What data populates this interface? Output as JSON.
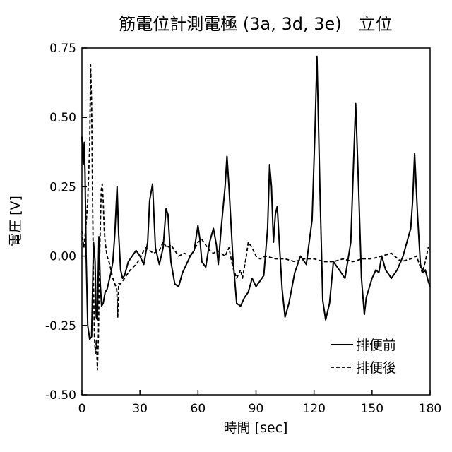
{
  "chart_data": {
    "type": "line",
    "title": "筋電位計測電極 (3a, 3d, 3e)　立位",
    "xlabel": "時間 [sec]",
    "ylabel": "電圧 [V]",
    "xlim": [
      0,
      180
    ],
    "ylim": [
      -0.5,
      0.75
    ],
    "xticks": [
      0,
      30,
      60,
      90,
      120,
      150,
      180
    ],
    "xtick_labels": [
      "0",
      "30",
      "60",
      "90",
      "120",
      "150",
      "180"
    ],
    "yticks": [
      -0.5,
      -0.25,
      0,
      0.25,
      0.5,
      0.75
    ],
    "ytick_labels": [
      "-0.50",
      "-0.25",
      "0.00",
      "0.25",
      "0.50",
      "0.75"
    ],
    "grid": false,
    "legend_position": "bottom-right",
    "series": [
      {
        "name": "排便前",
        "style": "solid",
        "color": "#000000",
        "x": [
          0,
          0.7,
          1.2,
          1.6,
          2.2,
          3,
          4,
          5,
          6,
          6.8,
          7.4,
          8,
          8.8,
          9.5,
          10.2,
          11,
          12,
          13,
          14,
          15,
          16,
          17,
          18.2,
          19,
          20,
          21,
          22,
          24,
          26,
          28,
          30,
          32,
          34,
          35,
          36.5,
          38,
          40,
          42,
          43.5,
          44.5,
          46,
          48,
          50,
          52,
          54,
          56,
          58,
          60,
          61,
          62,
          64,
          66,
          68,
          69.5,
          70.5,
          72,
          74,
          75,
          76,
          78,
          80,
          82,
          84,
          86,
          88,
          90,
          92,
          94,
          96,
          97,
          98,
          99,
          100,
          101,
          102,
          103.5,
          105,
          107,
          110,
          113,
          116,
          119,
          120.5,
          121.5,
          123,
          124.5,
          126,
          128,
          130,
          133,
          136,
          139,
          140.5,
          141.5,
          143,
          144.5,
          146,
          147,
          150,
          152,
          153.5,
          155,
          157,
          160,
          163,
          166,
          168,
          170,
          171,
          172,
          173.5,
          175,
          176.5,
          177.5,
          179,
          180
        ],
        "y": [
          0.43,
          0.33,
          0.41,
          0.3,
          0.0,
          -0.25,
          -0.3,
          -0.29,
          0.05,
          -0.02,
          -0.22,
          -0.23,
          0.07,
          -0.1,
          -0.18,
          -0.17,
          -0.13,
          -0.12,
          -0.09,
          -0.06,
          -0.02,
          0.08,
          0.25,
          0.08,
          -0.05,
          -0.08,
          -0.07,
          -0.02,
          0.0,
          0.02,
          0.0,
          -0.03,
          0.05,
          0.2,
          0.26,
          0.03,
          -0.03,
          0.03,
          0.17,
          0.15,
          -0.02,
          -0.1,
          -0.11,
          -0.06,
          -0.03,
          0.0,
          0.02,
          0.11,
          0.06,
          -0.02,
          -0.04,
          0.05,
          0.1,
          0.04,
          -0.03,
          0.1,
          0.25,
          0.36,
          0.25,
          0.0,
          -0.17,
          -0.18,
          -0.15,
          -0.13,
          -0.08,
          -0.11,
          -0.09,
          -0.07,
          0.1,
          0.33,
          0.25,
          0.05,
          0.15,
          0.18,
          0.05,
          -0.12,
          -0.22,
          -0.17,
          -0.06,
          0.0,
          -0.03,
          0.13,
          0.45,
          0.72,
          0.25,
          -0.16,
          -0.23,
          -0.17,
          -0.02,
          -0.05,
          -0.08,
          0.05,
          0.35,
          0.55,
          0.25,
          -0.08,
          -0.21,
          -0.15,
          -0.08,
          -0.05,
          -0.06,
          0.0,
          -0.05,
          -0.08,
          -0.05,
          0.0,
          0.05,
          0.1,
          0.2,
          0.37,
          0.15,
          -0.03,
          -0.06,
          -0.05,
          -0.09,
          -0.11
        ]
      },
      {
        "name": "排便後",
        "style": "dashed",
        "color": "#000000",
        "x": [
          0,
          1,
          2,
          3,
          4,
          4.5,
          5,
          5.5,
          6,
          6.5,
          7,
          7.5,
          8,
          8.5,
          9,
          9.5,
          10,
          10.5,
          11,
          11.5,
          12,
          13,
          14,
          15,
          16,
          17,
          18,
          18.5,
          19,
          20,
          22,
          25,
          28,
          30,
          32,
          33,
          35,
          37,
          40,
          42,
          44,
          46,
          48,
          50,
          53,
          56,
          58,
          60,
          62,
          64,
          66,
          68,
          70,
          72,
          74,
          76,
          78,
          80,
          82,
          83,
          85,
          86,
          88,
          90,
          92,
          95,
          100,
          105,
          110,
          115,
          120,
          125,
          130,
          135,
          140,
          145,
          150,
          155,
          160,
          165,
          170,
          173,
          175,
          176,
          177.5,
          179,
          180
        ],
        "y": [
          0.09,
          0.03,
          0.1,
          0.2,
          0.4,
          0.69,
          0.55,
          0.2,
          -0.1,
          -0.3,
          -0.35,
          -0.3,
          -0.41,
          -0.3,
          -0.05,
          0.1,
          0.24,
          0.26,
          0.2,
          0.1,
          0.05,
          0.0,
          -0.02,
          -0.05,
          -0.08,
          -0.1,
          -0.12,
          -0.22,
          -0.1,
          -0.1,
          -0.08,
          -0.05,
          -0.03,
          -0.01,
          0.02,
          0.03,
          0.02,
          0.01,
          0.02,
          0.05,
          0.03,
          0.04,
          0.02,
          0.0,
          0.01,
          0.0,
          0.02,
          0.05,
          0.06,
          0.04,
          0.02,
          0.01,
          0.02,
          0.01,
          0.0,
          0.03,
          -0.04,
          -0.08,
          -0.05,
          -0.08,
          0.0,
          0.05,
          0.03,
          0.0,
          -0.01,
          0.0,
          -0.01,
          -0.01,
          -0.02,
          -0.01,
          -0.01,
          -0.02,
          -0.02,
          -0.01,
          -0.02,
          -0.01,
          -0.01,
          0.0,
          0.01,
          -0.02,
          -0.01,
          0.0,
          -0.04,
          -0.06,
          -0.02,
          0.03,
          0.02
        ]
      }
    ]
  },
  "legend": {
    "items": [
      {
        "label": "排便前",
        "style": "solid"
      },
      {
        "label": "排便後",
        "style": "dashed"
      }
    ]
  }
}
